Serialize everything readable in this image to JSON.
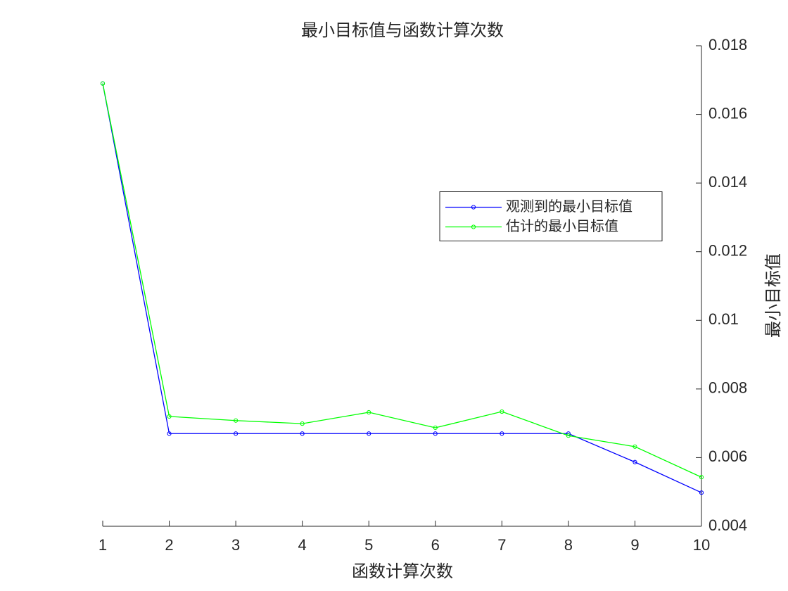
{
  "chart_data": {
    "type": "line",
    "title": "最小目标值与函数计算次数",
    "x_label": "函数计算次数",
    "y_label": "最小目标值",
    "y_axis_side": "right",
    "x": [
      1,
      2,
      3,
      4,
      5,
      6,
      7,
      8,
      9,
      10
    ],
    "series": [
      {
        "name": "观测到的最小目标值",
        "color": "#0000ff",
        "values": [
          0.0169,
          0.0067,
          0.0067,
          0.0067,
          0.0067,
          0.0067,
          0.0067,
          0.0067,
          0.00587,
          0.00498
        ]
      },
      {
        "name": "估计的最小目标值",
        "color": "#00ff00",
        "values": [
          0.0169,
          0.0072,
          0.00708,
          0.00699,
          0.00732,
          0.00687,
          0.00734,
          0.00664,
          0.00632,
          0.00543
        ]
      }
    ],
    "xlim": [
      1,
      10
    ],
    "xticks": [
      1,
      2,
      3,
      4,
      5,
      6,
      7,
      8,
      9,
      10
    ],
    "ylim": [
      0.004,
      0.018
    ],
    "yticks": [
      0.004,
      0.006,
      0.008,
      0.01,
      0.012,
      0.014,
      0.016,
      0.018
    ],
    "legend": "east",
    "grid": false
  }
}
